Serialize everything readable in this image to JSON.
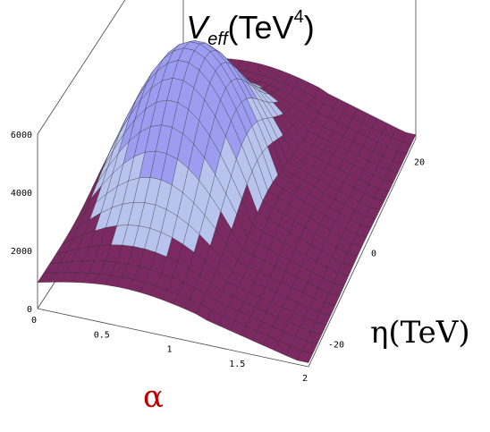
{
  "chart_data": {
    "type": "surface3d",
    "title": {
      "main": "V",
      "sub": "eff",
      "unit_open": "(TeV",
      "unit_power": "4",
      "unit_close": ")"
    },
    "xlabel": "α",
    "ylabel": "η(TeV)",
    "zlabel": "",
    "xlim": [
      0,
      2
    ],
    "ylim": [
      -25,
      25
    ],
    "zlim": [
      0,
      6000
    ],
    "x_ticks": [
      "0",
      "0.5",
      "1",
      "1.5",
      "2"
    ],
    "y_ticks": [
      "-20",
      "0",
      "20"
    ],
    "z_ticks": [
      "0",
      "2000",
      "4000",
      "6000"
    ],
    "surface_description_values": {
      "max_approx": 5200,
      "ridge_eta": 0,
      "valley_eta": [
        -20,
        20
      ]
    },
    "colors": {
      "top": "#9c9cf0",
      "mid": "#b8c4ee",
      "low": "#7a2a60",
      "ridge_edge": "#aaf0f0"
    }
  }
}
